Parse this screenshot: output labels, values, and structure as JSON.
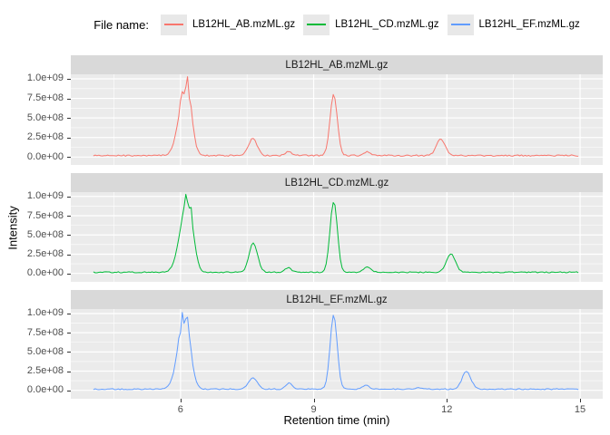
{
  "legend": {
    "title": "File name:",
    "items": [
      {
        "label": "LB12HL_AB.mzML.gz",
        "color": "#F8766D"
      },
      {
        "label": "LB12HL_CD.mzML.gz",
        "color": "#00BA38"
      },
      {
        "label": "LB12HL_EF.mzML.gz",
        "color": "#619CFF"
      }
    ]
  },
  "colors": {
    "panel_background": "#EBEBEB",
    "strip_background": "#D9D9D9",
    "gridline": "#FFFFFF",
    "axis_text": "#4D4D4D",
    "series_red": "#F8766D",
    "series_green": "#00BA38",
    "series_blue": "#619CFF"
  },
  "chart_data": {
    "type": "line",
    "xlabel": "Retention time (min)",
    "ylabel": "Intensity",
    "x_ticks": [
      6,
      9,
      12,
      15
    ],
    "x_tick_labels": [
      "6",
      "9",
      "12",
      "15"
    ],
    "x_minor_ticks": [
      4.5,
      7.5,
      10.5,
      13.5
    ],
    "y_ticks": [
      0,
      250000000.0,
      500000000.0,
      750000000.0,
      1000000000.0
    ],
    "y_tick_labels": [
      "0.0e+00",
      "2.5e+08",
      "5.0e+08",
      "7.5e+08",
      "1.0e+09"
    ],
    "x_axis_range": [
      3.53,
      15.51
    ],
    "x_data_range": [
      4.04,
      14.96
    ],
    "grid": true,
    "legend_position": "top",
    "facets": [
      {
        "title": "LB12HL_AB.mzML.gz",
        "series": "LB12HL_AB.mzML.gz",
        "color": "#F8766D",
        "baseline_noise": 28000000.0,
        "peaks": [
          {
            "center_min": 6.13,
            "height": 930000000.0,
            "sigma_left": 0.155,
            "sigma_right": 0.115,
            "jag_amp": 280000000.0
          },
          {
            "center_min": 7.63,
            "height": 220000000.0,
            "sigma": 0.095
          },
          {
            "center_min": 8.43,
            "height": 55000000.0,
            "sigma": 0.07
          },
          {
            "center_min": 9.45,
            "height": 770000000.0,
            "sigma": 0.082,
            "jag_amp": 50000000.0
          },
          {
            "center_min": 10.2,
            "height": 50000000.0,
            "sigma": 0.07
          },
          {
            "center_min": 11.86,
            "height": 210000000.0,
            "sigma": 0.1
          }
        ]
      },
      {
        "title": "LB12HL_CD.mzML.gz",
        "series": "LB12HL_CD.mzML.gz",
        "color": "#00BA38",
        "baseline_noise": 22000000.0,
        "peaks": [
          {
            "center_min": 6.16,
            "height": 960000000.0,
            "sigma_left": 0.16,
            "sigma_right": 0.12,
            "jag_amp": 280000000.0
          },
          {
            "center_min": 7.64,
            "height": 380000000.0,
            "sigma": 0.095
          },
          {
            "center_min": 8.43,
            "height": 60000000.0,
            "sigma": 0.07
          },
          {
            "center_min": 9.45,
            "height": 930000000.0,
            "sigma": 0.082,
            "jag_amp": 50000000.0
          },
          {
            "center_min": 10.21,
            "height": 75000000.0,
            "sigma": 0.08
          },
          {
            "center_min": 12.09,
            "height": 240000000.0,
            "sigma": 0.1
          }
        ]
      },
      {
        "title": "LB12HL_EF.mzML.gz",
        "series": "LB12HL_EF.mzML.gz",
        "color": "#619CFF",
        "baseline_noise": 22000000.0,
        "peaks": [
          {
            "center_min": 6.1,
            "height": 970000000.0,
            "sigma_left": 0.15,
            "sigma_right": 0.12,
            "jag_amp": 280000000.0
          },
          {
            "center_min": 7.63,
            "height": 150000000.0,
            "sigma": 0.095
          },
          {
            "center_min": 8.45,
            "height": 78000000.0,
            "sigma": 0.075
          },
          {
            "center_min": 9.45,
            "height": 960000000.0,
            "sigma": 0.08,
            "jag_amp": 50000000.0
          },
          {
            "center_min": 10.18,
            "height": 55000000.0,
            "sigma": 0.07
          },
          {
            "center_min": 11.35,
            "height": 15000000.0,
            "sigma": 0.06
          },
          {
            "center_min": 12.44,
            "height": 230000000.0,
            "sigma": 0.1
          }
        ]
      }
    ]
  }
}
